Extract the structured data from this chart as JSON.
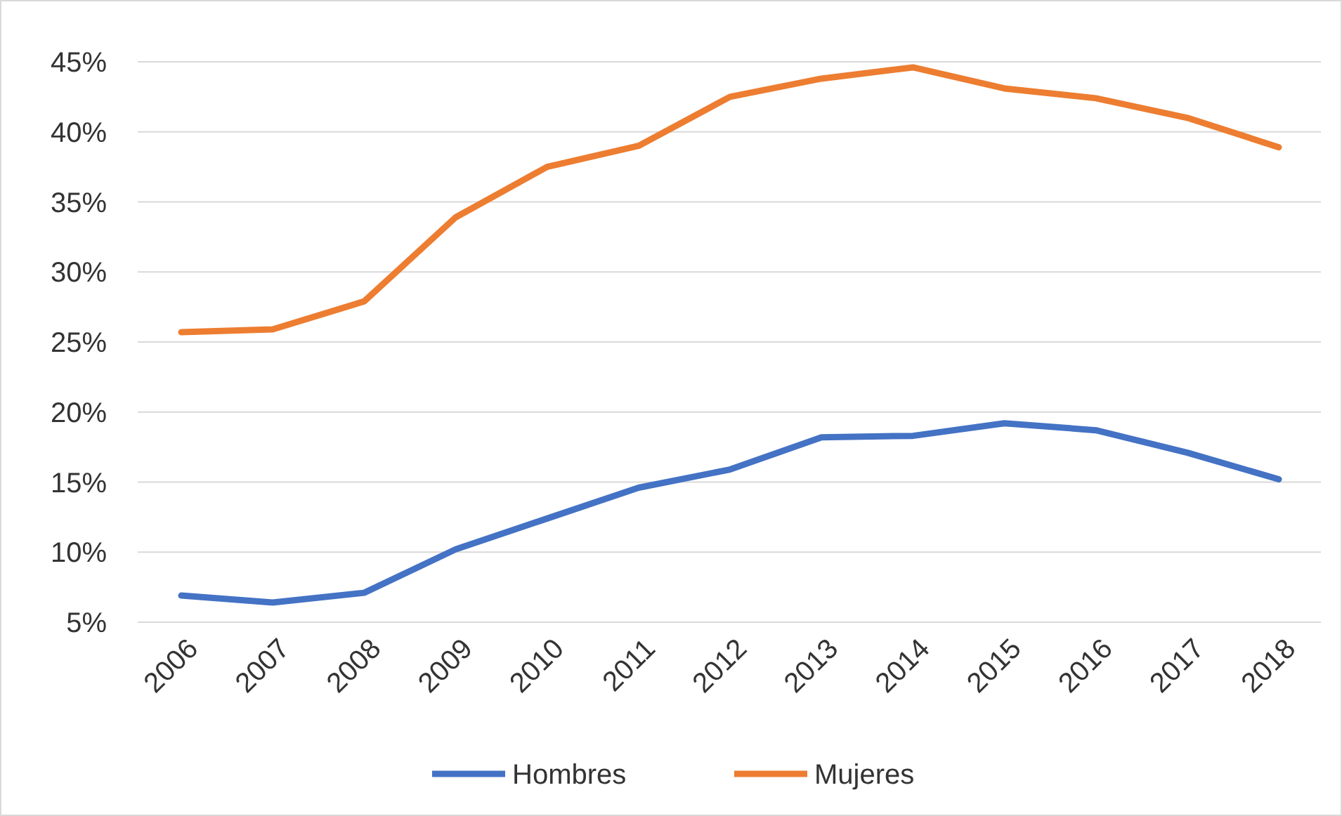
{
  "chart_data": {
    "type": "line",
    "categories": [
      "2006",
      "2007",
      "2008",
      "2009",
      "2010",
      "2011",
      "2012",
      "2013",
      "2014",
      "2015",
      "2016",
      "2017",
      "2018"
    ],
    "series": [
      {
        "name": "Hombres",
        "color": "#4472c4",
        "values": [
          6.9,
          6.4,
          7.1,
          10.2,
          12.4,
          14.6,
          15.9,
          18.2,
          18.3,
          19.2,
          18.7,
          17.1,
          15.2
        ]
      },
      {
        "name": "Mujeres",
        "color": "#ed7d31",
        "values": [
          25.7,
          25.9,
          27.9,
          33.9,
          37.5,
          39.0,
          42.5,
          43.8,
          44.6,
          43.1,
          42.4,
          41.0,
          38.9
        ]
      }
    ],
    "ylim": [
      5,
      45
    ],
    "yticks": [
      {
        "value": 5,
        "label": "5%"
      },
      {
        "value": 10,
        "label": "10%"
      },
      {
        "value": 15,
        "label": "15%"
      },
      {
        "value": 20,
        "label": "20%"
      },
      {
        "value": 25,
        "label": "25%"
      },
      {
        "value": 30,
        "label": "30%"
      },
      {
        "value": 35,
        "label": "35%"
      },
      {
        "value": 40,
        "label": "40%"
      },
      {
        "value": 45,
        "label": "45%"
      }
    ],
    "grid": "y",
    "legend": "bottom",
    "marker": "none",
    "line_style": "solid"
  }
}
